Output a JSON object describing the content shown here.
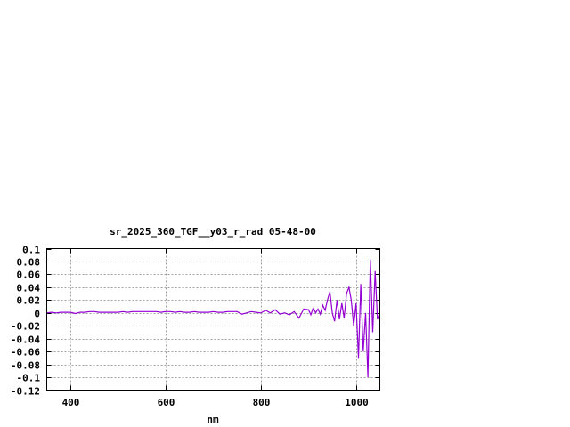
{
  "chart_data": {
    "type": "line",
    "title": "sr_2025_360_TGF__y03_r_rad 05-48-00",
    "xlabel": "nm",
    "ylabel": "",
    "xlim": [
      350,
      1050
    ],
    "ylim": [
      -0.12,
      0.1
    ],
    "xticks": [
      400,
      600,
      800,
      1000
    ],
    "xtick_labels": [
      "400",
      "600",
      "800",
      "1000"
    ],
    "yticks": [
      0.1,
      0.08,
      0.06,
      0.04,
      0.02,
      0,
      -0.02,
      -0.04,
      -0.06,
      -0.08,
      -0.1,
      -0.12
    ],
    "ytick_labels": [
      "0.1",
      "0.08",
      "0.06",
      "0.04",
      "0.02",
      "0",
      "-0.02",
      "-0.04",
      "-0.06",
      "-0.08",
      "-0.1",
      "-0.12"
    ],
    "grid": true,
    "series": [
      {
        "color": "#9400d3",
        "x": [
          350,
          360,
          370,
          380,
          390,
          400,
          410,
          420,
          430,
          440,
          450,
          460,
          470,
          480,
          490,
          500,
          510,
          520,
          530,
          540,
          550,
          560,
          570,
          580,
          590,
          600,
          610,
          620,
          630,
          640,
          650,
          660,
          670,
          680,
          690,
          700,
          710,
          720,
          730,
          740,
          750,
          760,
          770,
          780,
          790,
          800,
          810,
          820,
          830,
          840,
          850,
          860,
          870,
          880,
          890,
          900,
          905,
          910,
          915,
          920,
          925,
          930,
          935,
          940,
          945,
          950,
          955,
          960,
          965,
          970,
          975,
          980,
          985,
          990,
          995,
          1000,
          1005,
          1010,
          1015,
          1020,
          1025,
          1030,
          1035,
          1040,
          1045,
          1050
        ],
        "y": [
          0.0,
          0.001,
          0.0,
          0.001,
          0.001,
          0.001,
          -0.001,
          0.001,
          0.001,
          0.002,
          0.002,
          0.001,
          0.001,
          0.001,
          0.001,
          0.001,
          0.002,
          0.001,
          0.002,
          0.002,
          0.002,
          0.002,
          0.002,
          0.002,
          0.001,
          0.002,
          0.002,
          0.001,
          0.002,
          0.001,
          0.001,
          0.002,
          0.001,
          0.001,
          0.001,
          0.002,
          0.001,
          0.001,
          0.002,
          0.002,
          0.002,
          -0.002,
          0.0,
          0.002,
          0.001,
          0.0,
          0.004,
          0.0,
          0.005,
          -0.002,
          0.0,
          -0.003,
          0.002,
          -0.008,
          0.006,
          0.005,
          -0.003,
          0.008,
          0.0,
          0.006,
          -0.002,
          0.012,
          0.004,
          0.02,
          0.033,
          0.0,
          -0.013,
          0.02,
          -0.01,
          0.015,
          -0.008,
          0.03,
          0.04,
          0.02,
          -0.02,
          0.015,
          -0.07,
          0.045,
          -0.06,
          0.0,
          -0.1,
          0.083,
          -0.03,
          0.065,
          -0.01,
          0.0
        ]
      }
    ]
  }
}
